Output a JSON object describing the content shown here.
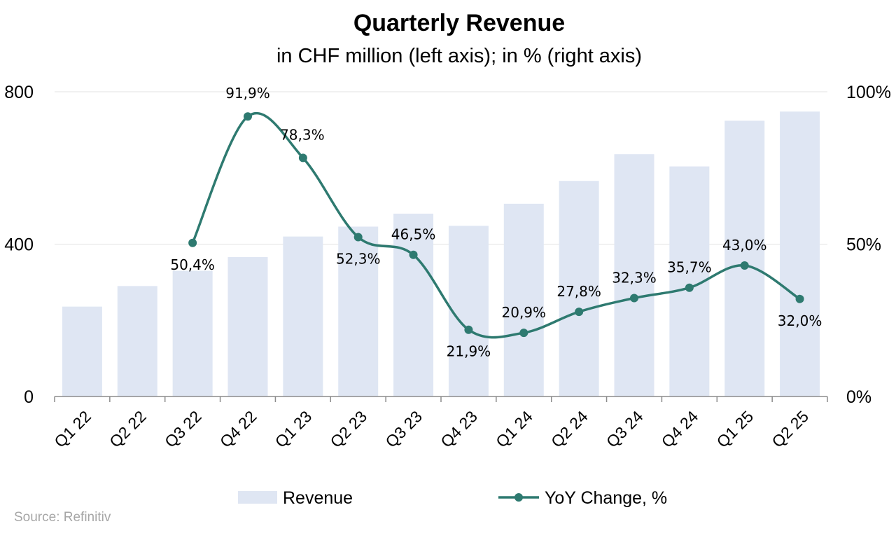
{
  "chart_data": {
    "type": "bar",
    "title": "Quarterly Revenue",
    "subtitle": "in CHF million (left axis); in % (right axis)",
    "categories": [
      "Q1 22",
      "Q2 22",
      "Q3 22",
      "Q4 22",
      "Q1 23",
      "Q2 23",
      "Q3 23",
      "Q4 23",
      "Q1 24",
      "Q2 24",
      "Q3 24",
      "Q4 24",
      "Q1 25",
      "Q2 25"
    ],
    "series": [
      {
        "name": "Revenue",
        "type": "bar",
        "axis": "left",
        "color": "#dfe6f3",
        "values": [
          236,
          290,
          330,
          366,
          420,
          446,
          480,
          448,
          506,
          566,
          636,
          604,
          724,
          748
        ]
      },
      {
        "name": "YoY Change, %",
        "type": "line",
        "axis": "right",
        "color": "#2e7a70",
        "values": [
          null,
          null,
          50.4,
          91.9,
          78.3,
          52.3,
          46.5,
          21.9,
          20.9,
          27.8,
          32.3,
          35.7,
          43.0,
          32.0
        ],
        "labels": [
          "",
          "",
          "50,4%",
          "91,9%",
          "78,3%",
          "52,3%",
          "46,5%",
          "21,9%",
          "20,9%",
          "27,8%",
          "32,3%",
          "35,7%",
          "43,0%",
          "32,0%"
        ]
      }
    ],
    "y_left": {
      "min": 0,
      "max": 800,
      "ticks": [
        0,
        400,
        800
      ],
      "tick_labels": [
        "0",
        "400",
        "800"
      ]
    },
    "y_right": {
      "min": 0,
      "max": 100,
      "ticks": [
        0,
        50,
        100
      ],
      "tick_labels": [
        "0%",
        "50%",
        "100%"
      ]
    },
    "grid": true,
    "legend_position": "bottom",
    "source": "Source: Refinitiv"
  }
}
